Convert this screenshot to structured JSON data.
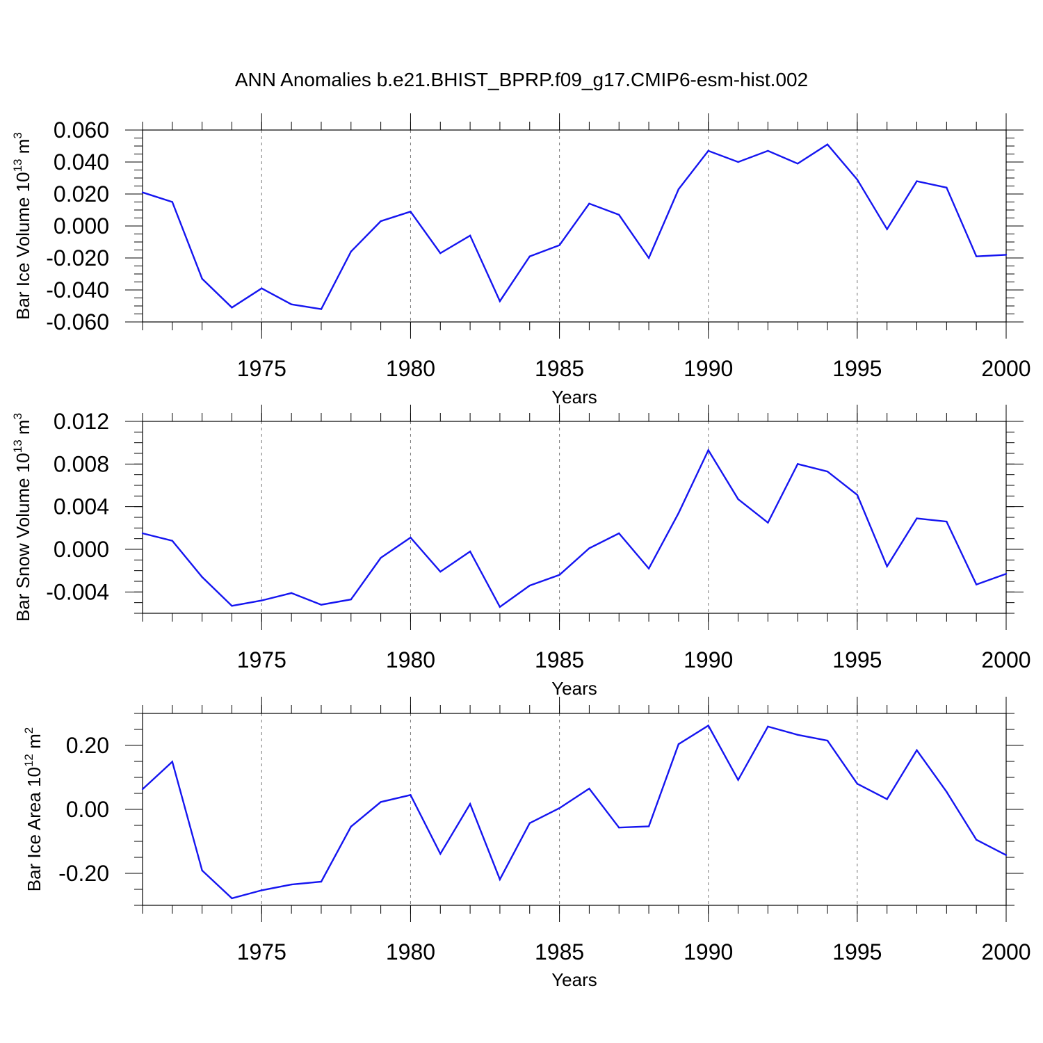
{
  "figure": {
    "title": "ANN Anomalies b.e21.BHIST_BPRP.f09_g17.CMIP6-esm-hist.002"
  },
  "chart_data": [
    {
      "type": "line",
      "ylabel": "Bar Ice Volume 10",
      "ylabel_exp": "13",
      "ylabel_unit": " m",
      "ylabel_unit_exp": "3",
      "xlabel": "Years",
      "xlim": [
        1971,
        2000
      ],
      "ylim": [
        -0.06,
        0.06
      ],
      "yticks": [
        -0.06,
        -0.04,
        -0.02,
        0.0,
        0.02,
        0.04,
        0.06
      ],
      "ytick_labels": [
        "-0.060",
        "-0.040",
        "-0.020",
        "0.000",
        "0.020",
        "0.040",
        "0.060"
      ],
      "yminor_step": 0.005,
      "xticks": [
        1975,
        1980,
        1985,
        1990,
        1995,
        2000
      ],
      "xtick_labels": [
        "1975",
        "1980",
        "1985",
        "1990",
        "1995",
        "2000"
      ],
      "line_color": "#1515f0",
      "grid": "vertical dashed at major x ticks",
      "x": [
        1971,
        1972,
        1973,
        1974,
        1975,
        1976,
        1977,
        1978,
        1979,
        1980,
        1981,
        1982,
        1983,
        1984,
        1985,
        1986,
        1987,
        1988,
        1989,
        1990,
        1991,
        1992,
        1993,
        1994,
        1995,
        1996,
        1997,
        1998,
        1999,
        2000
      ],
      "values": [
        0.021,
        0.015,
        -0.033,
        -0.051,
        -0.039,
        -0.049,
        -0.052,
        -0.016,
        0.003,
        0.009,
        -0.017,
        -0.006,
        -0.047,
        -0.019,
        -0.012,
        0.014,
        0.007,
        -0.02,
        0.023,
        0.047,
        0.04,
        0.047,
        0.039,
        0.051,
        0.029,
        -0.002,
        0.028,
        0.024,
        -0.019,
        -0.018
      ]
    },
    {
      "type": "line",
      "ylabel": "Bar Snow Volume 10",
      "ylabel_exp": "13",
      "ylabel_unit": " m",
      "ylabel_unit_exp": "3",
      "xlabel": "Years",
      "xlim": [
        1971,
        2000
      ],
      "ylim": [
        -0.006,
        0.012
      ],
      "yticks": [
        -0.004,
        0.0,
        0.004,
        0.008,
        0.012
      ],
      "ytick_labels": [
        "-0.004",
        "0.000",
        "0.004",
        "0.008",
        "0.012"
      ],
      "yminor_step": 0.001,
      "xticks": [
        1975,
        1980,
        1985,
        1990,
        1995,
        2000
      ],
      "xtick_labels": [
        "1975",
        "1980",
        "1985",
        "1990",
        "1995",
        "2000"
      ],
      "line_color": "#1515f0",
      "grid": "vertical dashed at major x ticks",
      "x": [
        1971,
        1972,
        1973,
        1974,
        1975,
        1976,
        1977,
        1978,
        1979,
        1980,
        1981,
        1982,
        1983,
        1984,
        1985,
        1986,
        1987,
        1988,
        1989,
        1990,
        1991,
        1992,
        1993,
        1994,
        1995,
        1996,
        1997,
        1998,
        1999,
        2000
      ],
      "values": [
        0.0015,
        0.0008,
        -0.0026,
        -0.0053,
        -0.0048,
        -0.0041,
        -0.0052,
        -0.0047,
        -0.0008,
        0.0011,
        -0.0021,
        -0.0002,
        -0.0054,
        -0.0034,
        -0.0024,
        0.0001,
        0.0015,
        -0.0018,
        0.0034,
        0.0093,
        0.0047,
        0.0025,
        0.008,
        0.0073,
        0.0051,
        -0.0016,
        0.0029,
        0.0026,
        -0.0033,
        -0.0023
      ]
    },
    {
      "type": "line",
      "ylabel": "Bar Ice Area 10",
      "ylabel_exp": "12",
      "ylabel_unit": " m",
      "ylabel_unit_exp": "2",
      "xlabel": "Years",
      "xlim": [
        1971,
        2000
      ],
      "ylim": [
        -0.3,
        0.3
      ],
      "yticks": [
        -0.2,
        0.0,
        0.2
      ],
      "ytick_labels": [
        "-0.20",
        "0.00",
        "0.20"
      ],
      "yminor_step": 0.05,
      "xticks": [
        1975,
        1980,
        1985,
        1990,
        1995,
        2000
      ],
      "xtick_labels": [
        "1975",
        "1980",
        "1985",
        "1990",
        "1995",
        "2000"
      ],
      "line_color": "#1515f0",
      "grid": "vertical dashed at major x ticks",
      "x": [
        1971,
        1972,
        1973,
        1974,
        1975,
        1976,
        1977,
        1978,
        1979,
        1980,
        1981,
        1982,
        1983,
        1984,
        1985,
        1986,
        1987,
        1988,
        1989,
        1990,
        1991,
        1992,
        1993,
        1994,
        1995,
        1996,
        1997,
        1998,
        1999,
        2000
      ],
      "values": [
        0.063,
        0.149,
        -0.191,
        -0.278,
        -0.253,
        -0.235,
        -0.226,
        -0.054,
        0.023,
        0.045,
        -0.139,
        0.017,
        -0.219,
        -0.043,
        0.004,
        0.065,
        -0.057,
        -0.053,
        0.204,
        0.262,
        0.092,
        0.259,
        0.233,
        0.215,
        0.08,
        0.032,
        0.185,
        0.055,
        -0.095,
        -0.143
      ]
    }
  ]
}
